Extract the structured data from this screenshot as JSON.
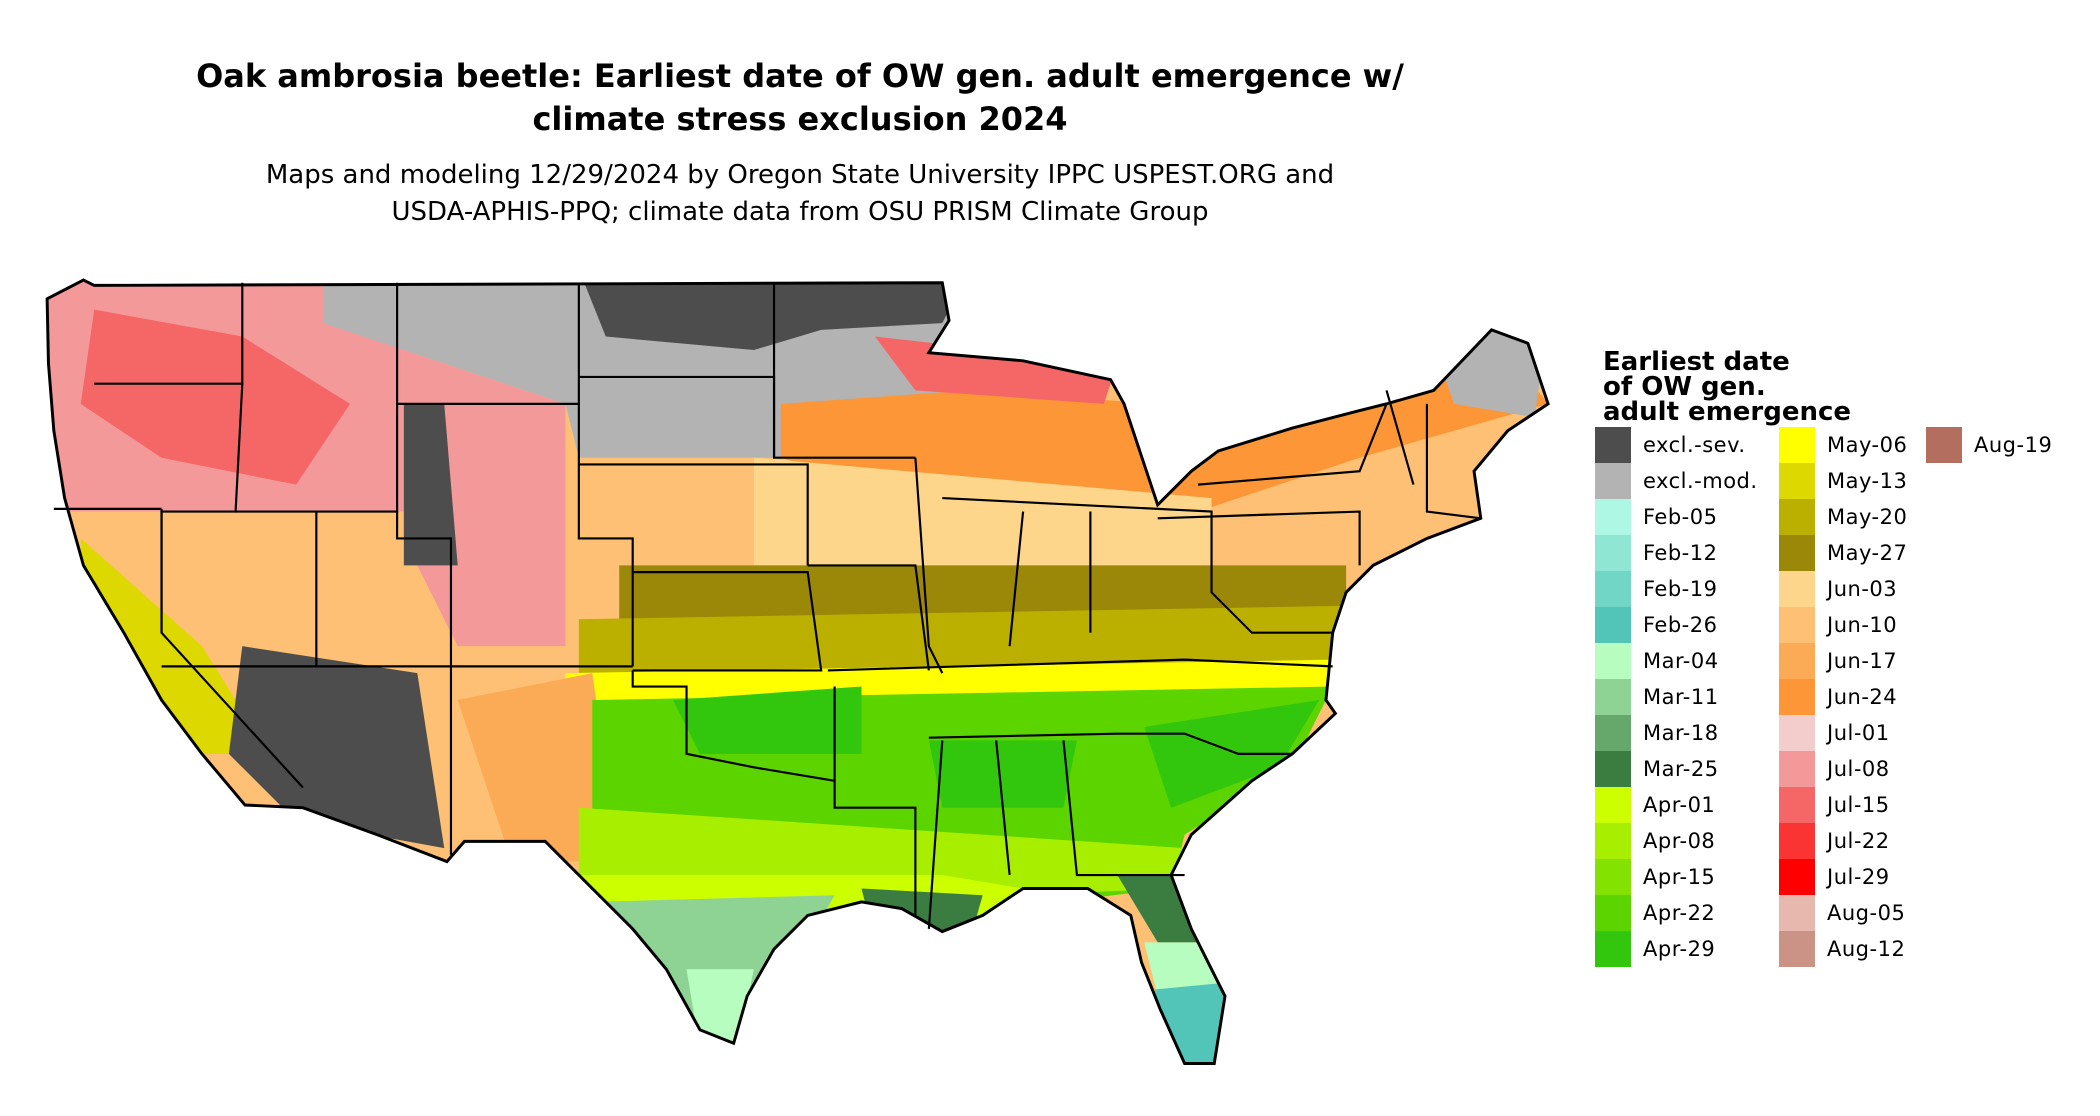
{
  "title_line1": "Oak ambrosia beetle: Earliest date of OW gen. adult emergence w/",
  "title_line2": "climate stress exclusion 2024",
  "subtitle_line1": "Maps and modeling 12/29/2024 by Oregon State University IPPC USPEST.ORG and",
  "subtitle_line2": "USDA-APHIS-PPQ; climate data from OSU PRISM Climate Group",
  "legend": {
    "title_line1": "Earliest date",
    "title_line2": "of OW gen.",
    "title_line3": "adult emergence",
    "columns": [
      [
        {
          "label": "excl.-sev.",
          "color": "#4d4d4d"
        },
        {
          "label": "excl.-mod.",
          "color": "#b3b3b3"
        },
        {
          "label": "Feb-05",
          "color": "#aef7e4"
        },
        {
          "label": "Feb-12",
          "color": "#8fe6d3"
        },
        {
          "label": "Feb-19",
          "color": "#71d6c6"
        },
        {
          "label": "Feb-26",
          "color": "#52c4b8"
        },
        {
          "label": "Mar-04",
          "color": "#b8fdc0"
        },
        {
          "label": "Mar-11",
          "color": "#8fd394"
        },
        {
          "label": "Mar-18",
          "color": "#66a86b"
        },
        {
          "label": "Mar-25",
          "color": "#3b7d41"
        },
        {
          "label": "Apr-01",
          "color": "#ccff00"
        },
        {
          "label": "Apr-08",
          "color": "#a8ee00"
        },
        {
          "label": "Apr-15",
          "color": "#84e200"
        },
        {
          "label": "Apr-22",
          "color": "#5bd400"
        },
        {
          "label": "Apr-29",
          "color": "#32c60c"
        }
      ],
      [
        {
          "label": "May-06",
          "color": "#ffff00"
        },
        {
          "label": "May-13",
          "color": "#dcd800"
        },
        {
          "label": "May-20",
          "color": "#bbb000"
        },
        {
          "label": "May-27",
          "color": "#9c8808"
        },
        {
          "label": "Jun-03",
          "color": "#fdd68c"
        },
        {
          "label": "Jun-10",
          "color": "#fdc074"
        },
        {
          "label": "Jun-17",
          "color": "#fbab55"
        },
        {
          "label": "Jun-24",
          "color": "#fd9636"
        },
        {
          "label": "Jul-01",
          "color": "#f3cccc"
        },
        {
          "label": "Jul-08",
          "color": "#f39999"
        },
        {
          "label": "Jul-15",
          "color": "#f56666"
        },
        {
          "label": "Jul-22",
          "color": "#fa3333"
        },
        {
          "label": "Jul-29",
          "color": "#ff0000"
        },
        {
          "label": "Aug-05",
          "color": "#e6b8ae"
        },
        {
          "label": "Aug-12",
          "color": "#cb9286"
        }
      ],
      [
        {
          "label": "Aug-19",
          "color": "#b36e5f"
        }
      ]
    ]
  }
}
